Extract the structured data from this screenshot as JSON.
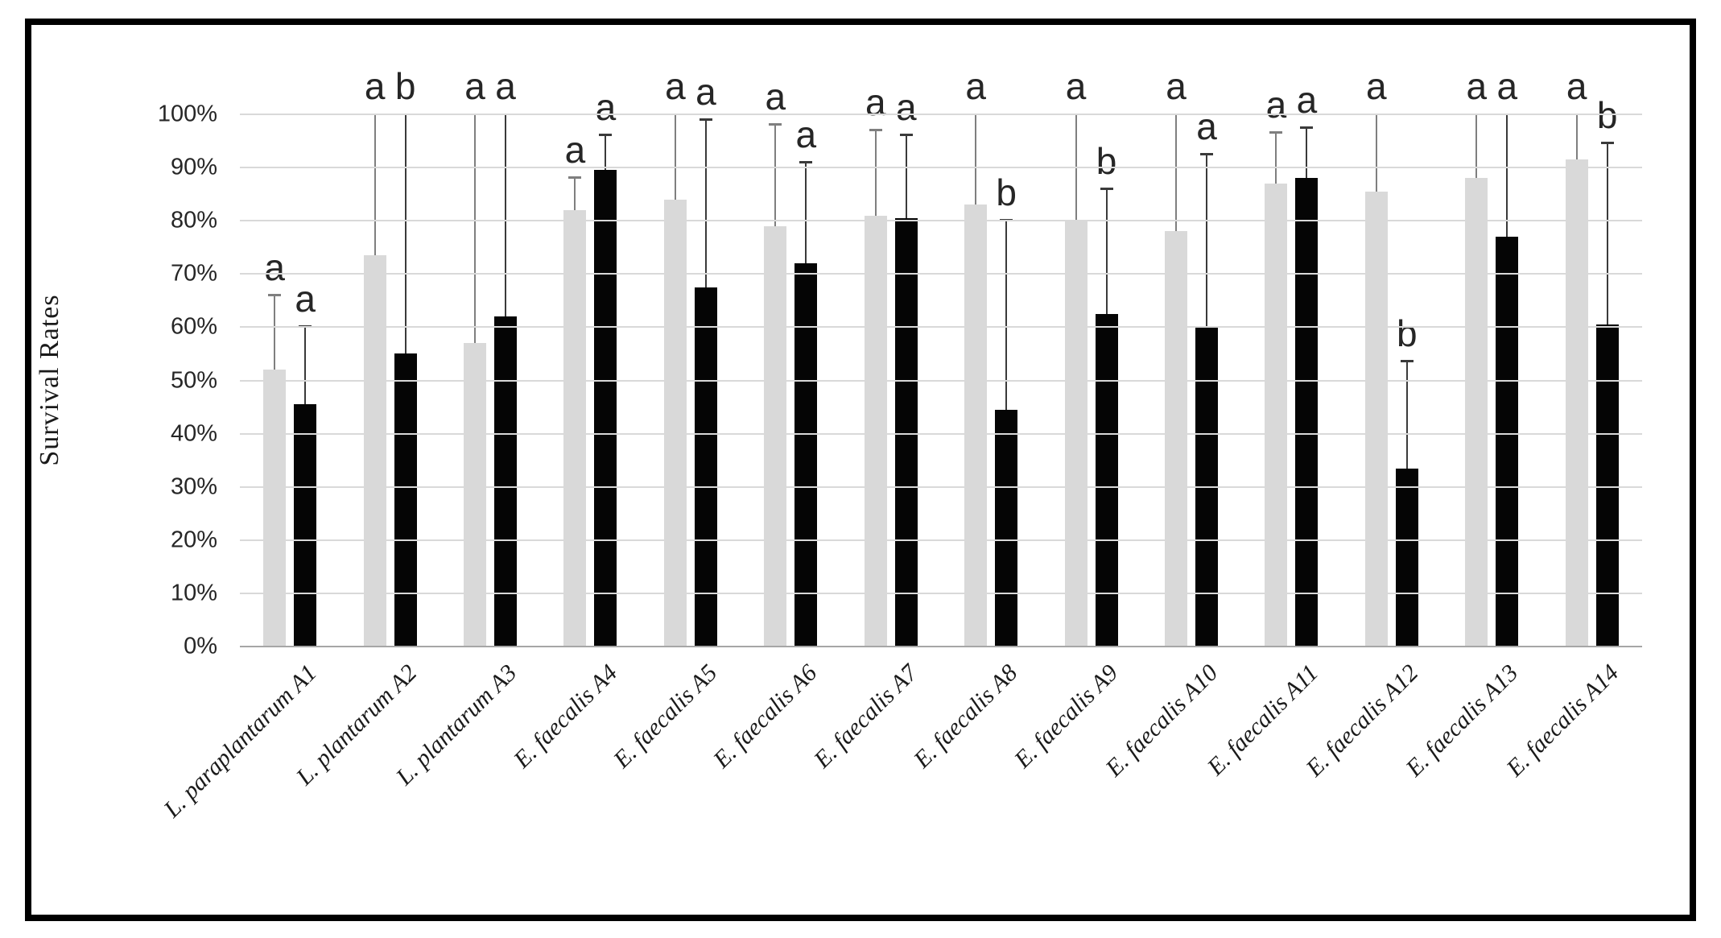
{
  "figure": {
    "background": "#ffffff",
    "border_color": "#000000",
    "gridline_color": "#d9d9d9",
    "axis_line_color": "#a6a6a6",
    "text_color": "#262626"
  },
  "chart_data": {
    "type": "bar",
    "title": "",
    "ylabel": "Survival Rates",
    "xlabel": "",
    "ylim": [
      0,
      100
    ],
    "ytick_step": 10,
    "ytick_labels": [
      "0%",
      "10%",
      "20%",
      "30%",
      "40%",
      "50%",
      "60%",
      "70%",
      "80%",
      "90%",
      "100%"
    ],
    "grid": true,
    "legend": "none",
    "categories": [
      "L. paraplantarum A1",
      "L. plantarum A2",
      "L. plantarum A3",
      "E. faecalis A4",
      "E. faecalis A5",
      "E. faecalis A6",
      "E. faecalis A7",
      "E. faecalis A8",
      "E. faecalis A9",
      "E. faecalis A10",
      "E. faecalis A11",
      "E. faecalis A12",
      "E. faecalis A13",
      "E. faecalis A14"
    ],
    "series": [
      {
        "name": "gray-series",
        "bar_color": "#d9d9d9",
        "error_color": "#7f7f7f",
        "values": [
          52,
          73.5,
          57,
          82,
          84,
          79,
          81,
          83,
          80,
          78,
          87,
          85.5,
          88,
          91.5
        ],
        "error_top": [
          66,
          100,
          100,
          88,
          100,
          98,
          97,
          100,
          100,
          100,
          96.5,
          100,
          100,
          100
        ],
        "letters": [
          "a",
          "a",
          "a",
          "a",
          "a",
          "a",
          "a",
          "a",
          "a",
          "a",
          "a",
          "a",
          "a",
          "a"
        ]
      },
      {
        "name": "black-series",
        "bar_color": "#050505",
        "error_color": "#3a3a3a",
        "values": [
          45.5,
          55,
          62,
          89.5,
          67.5,
          72,
          80.5,
          44.5,
          62.5,
          60,
          88,
          33.5,
          77,
          60.5
        ],
        "error_top": [
          60,
          100,
          100,
          96,
          99,
          91,
          96,
          80,
          86,
          92.5,
          97.5,
          53.5,
          100,
          94.5
        ],
        "letters": [
          "a",
          "b",
          "a",
          "a",
          "a",
          "a",
          "a",
          "b",
          "b",
          "a",
          "a",
          "b",
          "a",
          "b"
        ]
      }
    ]
  }
}
